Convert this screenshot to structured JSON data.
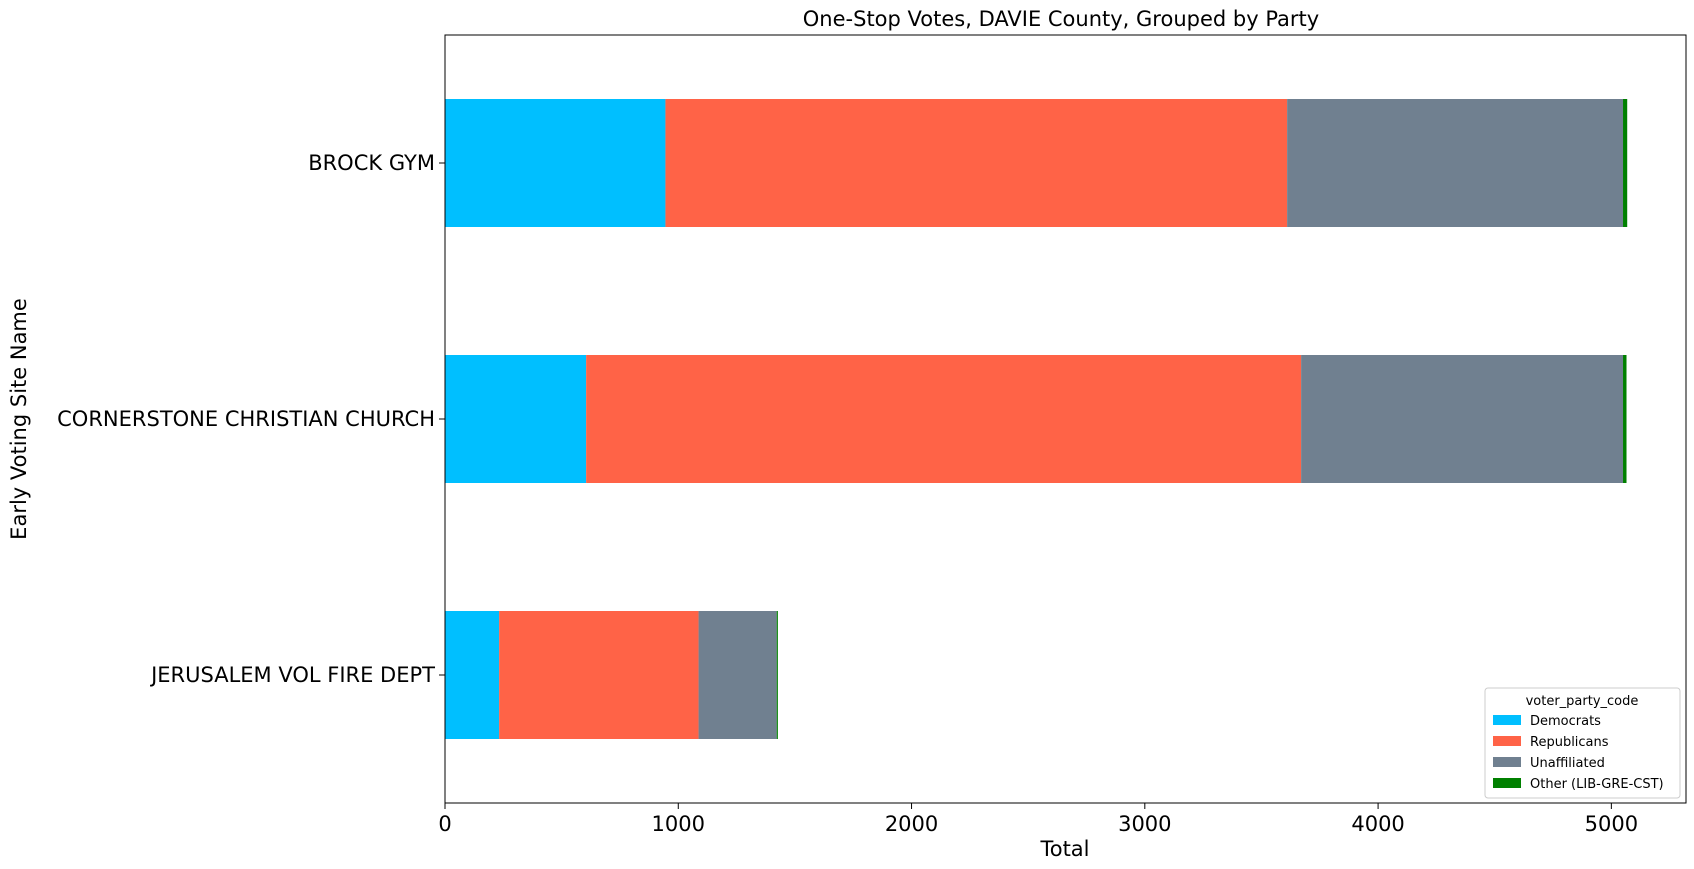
{
  "chart_data": {
    "type": "bar",
    "orientation": "horizontal",
    "stacked": true,
    "title": "One-Stop Votes, DAVIE County, Grouped by Party",
    "xlabel": "Total",
    "ylabel": "Early Voting Site Name",
    "xlim": [
      0,
      5320
    ],
    "xticks": [
      0,
      1000,
      2000,
      3000,
      4000,
      5000
    ],
    "categories": [
      "BROCK GYM",
      "CORNERSTONE CHRISTIAN CHURCH",
      "JERUSALEM VOL FIRE DEPT"
    ],
    "series": [
      {
        "name": "Democrats",
        "color": "#00bfff",
        "values": [
          945,
          605,
          232
        ]
      },
      {
        "name": "Republicans",
        "color": "#ff6347",
        "values": [
          2665,
          3065,
          855
        ]
      },
      {
        "name": "Unaffiliated",
        "color": "#708090",
        "values": [
          1440,
          1380,
          335
        ]
      },
      {
        "name": "Other (LIB-GRE-CST)",
        "color": "#008000",
        "values": [
          18,
          15,
          5
        ]
      }
    ],
    "legend": {
      "title": "voter_party_code",
      "placement": "lower right"
    },
    "grid": false
  }
}
